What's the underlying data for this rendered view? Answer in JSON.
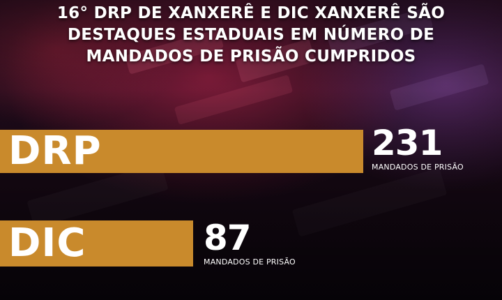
{
  "headline": {
    "lines": [
      "16° DRP DE XANXERÊ E DIC XANXERÊ SÃO",
      "DESTAQUES ESTADUAIS EM NÚMERO DE",
      "MANDADOS DE PRISÃO CUMPRIDOS"
    ]
  },
  "bars": [
    {
      "label": "DRP",
      "value": "231",
      "caption": "MANDADOS DE PRISÃO"
    },
    {
      "label": "DIC",
      "value": "87",
      "caption": "MANDADOS DE PRISÃO"
    }
  ],
  "colors": {
    "bar": "#c98a2c",
    "text": "#ffffff",
    "background": "#1a0a14"
  }
}
